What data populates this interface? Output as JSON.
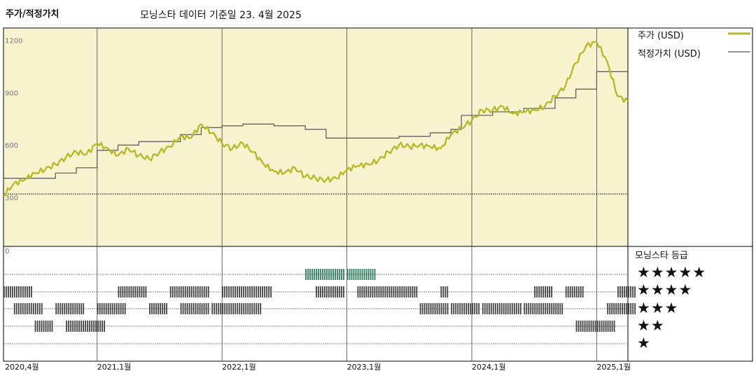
{
  "title": "주가/적정가치",
  "subtitle": "모닝스타 데이터 기준일 23. 4월 2025",
  "legend": {
    "price_label": "주가 (USD)",
    "fair_label": "적정가치 (USD)",
    "rating_label": "모닝스타 등급",
    "stars": [
      "★★★★★",
      "★★★★",
      "★★★",
      "★★",
      "★"
    ]
  },
  "colors": {
    "plot_bg": "#f7f3cf",
    "price": "#b6b92b",
    "fair": "#555555",
    "five_star": "#2e7d5b",
    "rating_bars": "#444444"
  },
  "chart_data": {
    "type": "line",
    "x_labels": [
      "2020,4월",
      "2021,1월",
      "2022,1월",
      "2023,1월",
      "2024,1월",
      "2025,1월"
    ],
    "x_label_dates": [
      "2020-04",
      "2021-01",
      "2022-01",
      "2023-01",
      "2024-01",
      "2025-01"
    ],
    "x_range": [
      "2020-04",
      "2025-04"
    ],
    "y_ticks": [
      0,
      300,
      600,
      900,
      1200
    ],
    "ylim": [
      0,
      1250
    ],
    "series": [
      {
        "name": "주가 (USD)",
        "points": [
          [
            "2020-04",
            290
          ],
          [
            "2020-05",
            360
          ],
          [
            "2020-06",
            380
          ],
          [
            "2020-07",
            420
          ],
          [
            "2020-08",
            440
          ],
          [
            "2020-09",
            470
          ],
          [
            "2020-10",
            510
          ],
          [
            "2020-11",
            540
          ],
          [
            "2020-12",
            530
          ],
          [
            "2021-01",
            590
          ],
          [
            "2021-02",
            560
          ],
          [
            "2021-03",
            520
          ],
          [
            "2021-04",
            560
          ],
          [
            "2021-05",
            520
          ],
          [
            "2021-06",
            500
          ],
          [
            "2021-07",
            540
          ],
          [
            "2021-08",
            570
          ],
          [
            "2021-09",
            630
          ],
          [
            "2021-10",
            620
          ],
          [
            "2021-11",
            700
          ],
          [
            "2021-12",
            650
          ],
          [
            "2022-01",
            590
          ],
          [
            "2022-02",
            560
          ],
          [
            "2022-03",
            590
          ],
          [
            "2022-04",
            540
          ],
          [
            "2022-05",
            470
          ],
          [
            "2022-06",
            430
          ],
          [
            "2022-07",
            420
          ],
          [
            "2022-08",
            450
          ],
          [
            "2022-09",
            400
          ],
          [
            "2022-10",
            390
          ],
          [
            "2022-11",
            380
          ],
          [
            "2022-12",
            390
          ],
          [
            "2023-01",
            440
          ],
          [
            "2023-02",
            460
          ],
          [
            "2023-03",
            470
          ],
          [
            "2023-04",
            490
          ],
          [
            "2023-05",
            540
          ],
          [
            "2023-06",
            580
          ],
          [
            "2023-07",
            570
          ],
          [
            "2023-08",
            580
          ],
          [
            "2023-09",
            570
          ],
          [
            "2023-10",
            560
          ],
          [
            "2023-11",
            640
          ],
          [
            "2023-12",
            680
          ],
          [
            "2024-01",
            720
          ],
          [
            "2024-02",
            780
          ],
          [
            "2024-03",
            780
          ],
          [
            "2024-04",
            800
          ],
          [
            "2024-05",
            760
          ],
          [
            "2024-06",
            770
          ],
          [
            "2024-07",
            780
          ],
          [
            "2024-08",
            800
          ],
          [
            "2024-09",
            860
          ],
          [
            "2024-10",
            920
          ],
          [
            "2024-11",
            1050
          ],
          [
            "2024-12",
            1150
          ],
          [
            "2025-01",
            1170
          ],
          [
            "2025-02",
            1060
          ],
          [
            "2025-03",
            860
          ],
          [
            "2025-04",
            830
          ]
        ]
      },
      {
        "name": "적정가치 (USD)",
        "step_points": [
          [
            "2020-04",
            390
          ],
          [
            "2020-09",
            420
          ],
          [
            "2020-11",
            450
          ],
          [
            "2021-01",
            550
          ],
          [
            "2021-03",
            580
          ],
          [
            "2021-05",
            600
          ],
          [
            "2021-09",
            640
          ],
          [
            "2021-11",
            680
          ],
          [
            "2022-01",
            690
          ],
          [
            "2022-03",
            700
          ],
          [
            "2022-06",
            690
          ],
          [
            "2022-09",
            670
          ],
          [
            "2022-11",
            620
          ],
          [
            "2023-06",
            630
          ],
          [
            "2023-09",
            650
          ],
          [
            "2023-11",
            670
          ],
          [
            "2023-12",
            750
          ],
          [
            "2024-03",
            770
          ],
          [
            "2024-06",
            790
          ],
          [
            "2024-09",
            850
          ],
          [
            "2024-11",
            900
          ],
          [
            "2025-01",
            1000
          ],
          [
            "2025-04",
            1000
          ]
        ]
      }
    ],
    "reference_line": 300,
    "ratings": {
      "5": [
        [
          "2022-09",
          "2022-12"
        ],
        [
          "2023-01",
          "2023-03"
        ]
      ],
      "4": [
        [
          "2020-04",
          "2020-06"
        ],
        [
          "2021-03",
          "2021-05"
        ],
        [
          "2021-08",
          "2021-11"
        ],
        [
          "2022-01",
          "2022-05"
        ],
        [
          "2022-10",
          "2022-12"
        ],
        [
          "2023-02",
          "2023-07"
        ],
        [
          "2023-10",
          "2023-10"
        ],
        [
          "2024-07",
          "2024-08"
        ],
        [
          "2024-10",
          "2024-11"
        ],
        [
          "2025-03",
          "2025-04"
        ]
      ],
      "3": [
        [
          "2020-05",
          "2020-07"
        ],
        [
          "2020-09",
          "2020-11"
        ],
        [
          "2021-01",
          "2021-03"
        ],
        [
          "2021-06",
          "2021-07"
        ],
        [
          "2021-09",
          "2021-11"
        ],
        [
          "2021-12",
          "2022-04"
        ],
        [
          "2023-08",
          "2023-10"
        ],
        [
          "2023-11",
          "2024-01"
        ],
        [
          "2024-02",
          "2024-05"
        ],
        [
          "2024-06",
          "2024-09"
        ],
        [
          "2025-02",
          "2025-04"
        ]
      ],
      "2": [
        [
          "2020-07",
          "2020-08"
        ],
        [
          "2020-10",
          "2021-01"
        ],
        [
          "2024-11",
          "2025-02"
        ]
      ],
      "1": []
    }
  }
}
